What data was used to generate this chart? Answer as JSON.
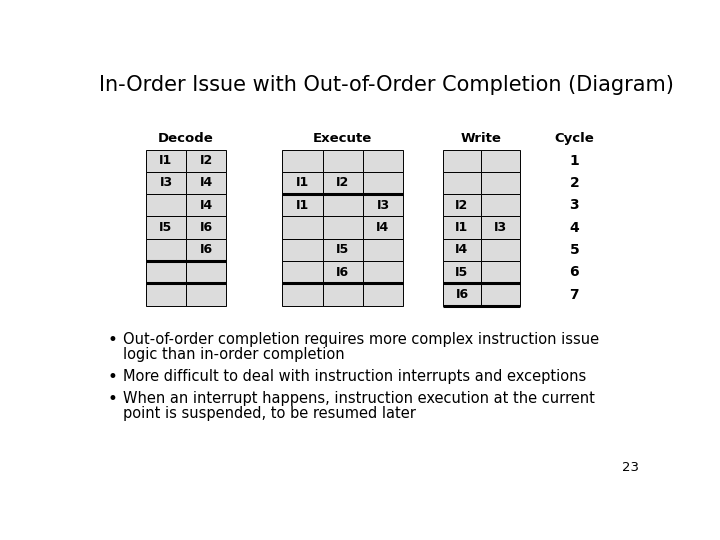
{
  "title": "In-Order Issue with Out-of-Order Completion (Diagram)",
  "title_fontsize": 15,
  "background_color": "#ffffff",
  "cell_bg": "#dcdcdc",
  "cell_border": "#000000",
  "text_color": "#000000",
  "decode_header": "Decode",
  "execute_header": "Execute",
  "write_header": "Write",
  "cycle_header": "Cycle",
  "num_rows": 7,
  "decode_cols": 2,
  "execute_cols": 3,
  "write_cols": 2,
  "decode_cells": [
    [
      "I1",
      "I2"
    ],
    [
      "I3",
      "I4"
    ],
    [
      "",
      "I4"
    ],
    [
      "I5",
      "I6"
    ],
    [
      "",
      "I6"
    ],
    [
      "",
      ""
    ],
    [
      "",
      ""
    ]
  ],
  "execute_cells": [
    [
      "",
      "",
      ""
    ],
    [
      "I1",
      "I2",
      ""
    ],
    [
      "I1",
      "",
      "I3"
    ],
    [
      "",
      "",
      "I4"
    ],
    [
      "",
      "I5",
      ""
    ],
    [
      "",
      "I6",
      ""
    ],
    [
      "",
      "",
      ""
    ]
  ],
  "write_cells": [
    [
      "",
      ""
    ],
    [
      "",
      ""
    ],
    [
      "I2",
      ""
    ],
    [
      "I1",
      "I3"
    ],
    [
      "I4",
      ""
    ],
    [
      "I5",
      ""
    ],
    [
      "I6",
      ""
    ]
  ],
  "cycle_labels": [
    "1",
    "2",
    "3",
    "4",
    "5",
    "6",
    "7"
  ],
  "bullet_points": [
    [
      "Out-of-order completion requires more complex instruction issue",
      "logic than in-order completion"
    ],
    [
      "More difficult to deal with instruction interrupts and exceptions"
    ],
    [
      "When an interrupt happens, instruction execution at the current",
      "point is suspended, to be resumed later"
    ]
  ],
  "page_number": "23",
  "decode_bold_after_rows": [
    4,
    5
  ],
  "execute_bold_after_rows": [
    1,
    5
  ],
  "write_bold_after_rows": [
    5,
    6
  ]
}
